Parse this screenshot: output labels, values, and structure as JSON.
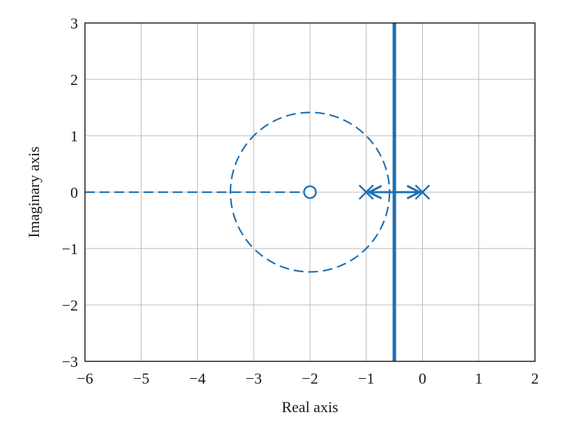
{
  "chart_data": {
    "type": "line",
    "title": "",
    "xlabel": "Real axis",
    "ylabel": "Imaginary axis",
    "xlim": [
      -6,
      2
    ],
    "ylim": [
      -3,
      3
    ],
    "xticks": [
      {
        "value": -6,
        "label": "−6"
      },
      {
        "value": -5,
        "label": "−5"
      },
      {
        "value": -4,
        "label": "−4"
      },
      {
        "value": -3,
        "label": "−3"
      },
      {
        "value": -2,
        "label": "−2"
      },
      {
        "value": -1,
        "label": "−1"
      },
      {
        "value": 0,
        "label": "0"
      },
      {
        "value": 1,
        "label": "1"
      },
      {
        "value": 2,
        "label": "2"
      }
    ],
    "yticks": [
      {
        "value": -3,
        "label": "−3"
      },
      {
        "value": -2,
        "label": "−2"
      },
      {
        "value": -1,
        "label": "−1"
      },
      {
        "value": 0,
        "label": "0"
      },
      {
        "value": 1,
        "label": "1"
      },
      {
        "value": 2,
        "label": "2"
      },
      {
        "value": 3,
        "label": "3"
      }
    ],
    "grid": true,
    "color": "#1f6fb2",
    "series": [
      {
        "style": "dashed",
        "x": [
          -6,
          -2
        ],
        "y": [
          0,
          0
        ]
      },
      {
        "style": "dashed-circle",
        "center": [
          -2,
          0
        ],
        "radius": 1.414
      },
      {
        "style": "solid",
        "x": [
          -1,
          0
        ],
        "y": [
          0,
          0
        ]
      },
      {
        "style": "solid",
        "x": [
          -0.5,
          -0.5
        ],
        "y": [
          -3,
          3
        ]
      }
    ],
    "poles": [
      {
        "x": -1,
        "y": 0
      },
      {
        "x": 0,
        "y": 0
      }
    ],
    "zeros": [
      {
        "x": -2,
        "y": 0
      }
    ],
    "arrows": [
      {
        "from": [
          -0.5,
          0
        ],
        "to": [
          -1,
          0
        ]
      },
      {
        "from": [
          -0.5,
          0
        ],
        "to": [
          0,
          0
        ]
      }
    ]
  }
}
